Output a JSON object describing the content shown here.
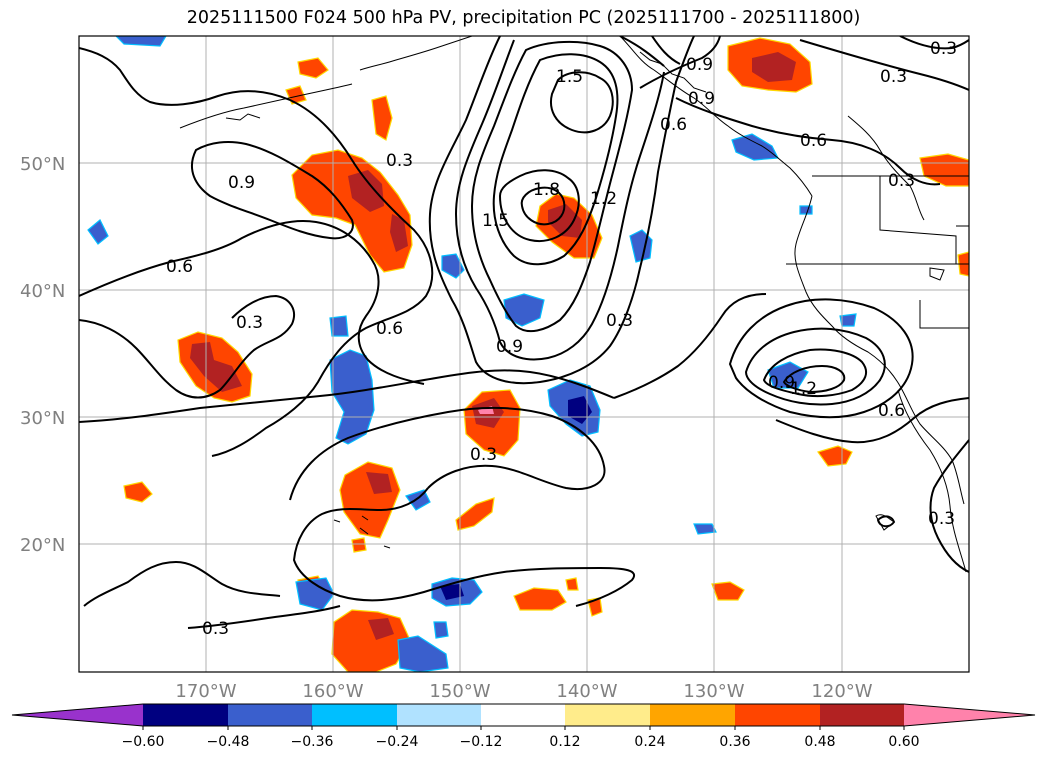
{
  "title": "2025111500 F024 500 hPa PV, precipitation PC (2025111700 - 2025111800)",
  "map": {
    "lon_ticks": [
      "170°W",
      "160°W",
      "150°W",
      "140°W",
      "130°W",
      "120°W"
    ],
    "lat_ticks": [
      "50°N",
      "40°N",
      "30°N",
      "20°N"
    ],
    "contour_labels": [
      "1.5",
      "1.8",
      "1.5",
      "1.2",
      "0.9",
      "0.9",
      "0.6",
      "0.3",
      "0.9",
      "0.6",
      "0.3",
      "0.6",
      "0.3",
      "0.3",
      "0.3",
      "0.6",
      "0.3",
      "0.9",
      "1.2",
      "0.6",
      "0.3",
      "0.3",
      "0.9",
      "0.3"
    ]
  },
  "colorbar": {
    "ticks": [
      "−0.60",
      "−0.48",
      "−0.36",
      "−0.24",
      "−0.12",
      "0.12",
      "0.24",
      "0.36",
      "0.48",
      "0.60"
    ],
    "colors": [
      "#9932cc",
      "#000080",
      "#3a5fcd",
      "#00bfff",
      "#b0e2ff",
      "#ffffff",
      "#ffec8b",
      "#ffa500",
      "#ff4500",
      "#b22222",
      "#ff82ab",
      "#ff82ab"
    ]
  }
}
